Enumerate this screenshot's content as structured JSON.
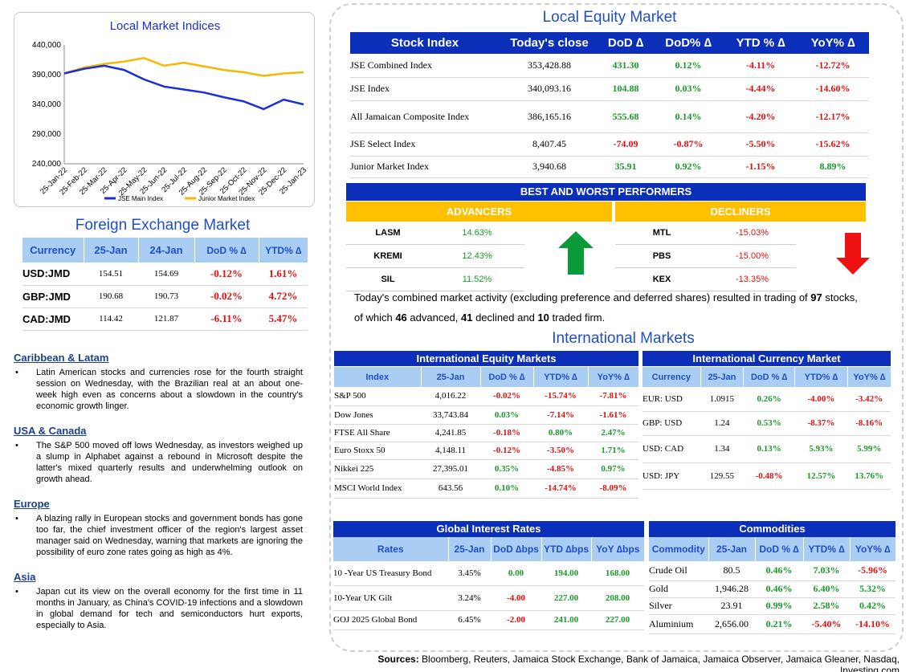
{
  "chart": {
    "title": "Local Market Indices",
    "y_ticks": [
      "440,000",
      "390,000",
      "340,000",
      "290,000",
      "240,000"
    ],
    "x_ticks": [
      "25-Jan-22",
      "25-Feb-22",
      "25-Mar-22",
      "25-Apr-22",
      "25-May-22",
      "25-Jun-22",
      "25-Jul-22",
      "25-Aug-22",
      "25-Sep-22",
      "25-Oct-22",
      "25-Nov-22",
      "25-Dec-22",
      "25-Jan-23"
    ],
    "legend": [
      "JSE Main Index",
      "Junior Market Index"
    ],
    "colors": {
      "main": "#1a2fd6",
      "junior": "#f5b800"
    }
  },
  "chart_data": {
    "type": "line",
    "title": "Local Market Indices",
    "x": [
      "25-Jan-22",
      "25-Feb-22",
      "25-Mar-22",
      "25-Apr-22",
      "25-May-22",
      "25-Jun-22",
      "25-Jul-22",
      "25-Aug-22",
      "25-Sep-22",
      "25-Oct-22",
      "25-Nov-22",
      "25-Dec-22",
      "25-Jan-23"
    ],
    "ylim": [
      240000,
      440000
    ],
    "series": [
      {
        "name": "JSE Main Index",
        "values": [
          392000,
          400000,
          405000,
          398000,
          382000,
          370000,
          365000,
          360000,
          352000,
          345000,
          332000,
          348000,
          340000
        ]
      },
      {
        "name": "Junior Market Index",
        "values": [
          392000,
          402000,
          408000,
          412000,
          418000,
          405000,
          410000,
          404000,
          398000,
          394000,
          388000,
          392000,
          394000
        ]
      }
    ],
    "grid": false,
    "legend_position": "bottom"
  },
  "fx": {
    "title": "Foreign Exchange Market",
    "headers": [
      "Currency",
      "25-Jan",
      "24-Jan",
      "DoD % ∆",
      "YTD% ∆"
    ],
    "rows": [
      {
        "cur": "USD:JMD",
        "d1": "154.51",
        "d2": "154.69",
        "dod": "-0.12%",
        "ytd": "1.61%"
      },
      {
        "cur": "GBP:JMD",
        "d1": "190.68",
        "d2": "190.73",
        "dod": "-0.02%",
        "ytd": "4.72%"
      },
      {
        "cur": "CAD:JMD",
        "d1": "114.42",
        "d2": "121.87",
        "dod": "-6.11%",
        "ytd": "5.47%"
      }
    ]
  },
  "news": [
    {
      "region": "Caribbean & Latam",
      "text": "Latin American stocks and currencies rose for the fourth straight session on Wednesday, with the Brazilian real at an about one-week high even as concerns about a slowdown in the country's economic growth linger."
    },
    {
      "region": "USA & Canada",
      "text": "The S&P 500 moved off lows Wednesday, as investors weighed up a slump in Alphabet against a rebound in Microsoft despite the latter's mixed quarterly results and underwhelming outlook on growth ahead."
    },
    {
      "region": "Europe",
      "text": "A blazing rally in European stocks and government bonds has gone too far, the chief investment officer of the region's largest asset manager said on Wednesday, warning that markets are ignoring the possibility of euro zone rates going as high as 4%."
    },
    {
      "region": "Asia",
      "text": "Japan cut its view on the overall economy for the first time in 11 months in January, as China's COVID-19 infections and a slowdown in global demand for tech and semiconductors hurt exports, especially to Asia."
    }
  ],
  "local_equity": {
    "title": "Local Equity Market",
    "headers": [
      "Stock Index",
      "Today's close",
      "DoD  ∆",
      "DoD% ∆",
      "YTD % ∆",
      "YoY% ∆"
    ],
    "rows": [
      {
        "name": "JSE Combined Index",
        "close": "353,428.88",
        "dod": "431.30",
        "dodp": "0.12%",
        "ytd": "-4.11%",
        "yoy": "-12.72%"
      },
      {
        "name": "JSE Index",
        "close": "340,093.16",
        "dod": "104.88",
        "dodp": "0.03%",
        "ytd": "-4.44%",
        "yoy": "-14.60%"
      },
      {
        "name": "All Jamaican Composite Index",
        "close": "386,165.16",
        "dod": "555.68",
        "dodp": "0.14%",
        "ytd": "-4.20%",
        "yoy": "-12.17%"
      },
      {
        "name": "JSE Select Index",
        "close": "8,407.45",
        "dod": "-74.09",
        "dodp": "-0.87%",
        "ytd": "-5.50%",
        "yoy": "-15.62%"
      },
      {
        "name": "Junior Market Index",
        "close": "3,940.68",
        "dod": "35.91",
        "dodp": "0.92%",
        "ytd": "-1.15%",
        "yoy": "8.89%"
      }
    ]
  },
  "performers": {
    "title": "BEST AND WORST PERFORMERS",
    "adv_label": "ADVANCERS",
    "dec_label": "DECLINERS",
    "advancers": [
      {
        "sym": "LASM",
        "val": "14.63%"
      },
      {
        "sym": "KREMI",
        "val": "12.43%"
      },
      {
        "sym": "SIL",
        "val": "11.52%"
      }
    ],
    "decliners": [
      {
        "sym": "MTL",
        "val": "-15.03%"
      },
      {
        "sym": "PBS",
        "val": "-15.00%"
      },
      {
        "sym": "KEX",
        "val": "-13.35%"
      }
    ],
    "up_color": "#0a9a3a",
    "down_color": "#ee1111"
  },
  "summary": {
    "p1": "Today's combined market activity (excluding preference and deferred shares) resulted in trading of ",
    "n_total": "97",
    "p2": " stocks, of which ",
    "n_adv": "46",
    "p3": " advanced, ",
    "n_dec": "41",
    "p4": " declined and ",
    "n_firm": "10",
    "p5": " traded firm."
  },
  "intl": {
    "title": "International Markets",
    "equity": {
      "title": "International Equity Markets",
      "headers": [
        "Index",
        "25-Jan",
        "DoD % ∆",
        "YTD% ∆",
        "YoY% ∆"
      ],
      "rows": [
        {
          "name": "S&P 500",
          "v": "4,016.22",
          "dod": "-0.02%",
          "ytd": "-15.74%",
          "yoy": "-7.81%"
        },
        {
          "name": "Dow Jones",
          "v": "33,743.84",
          "dod": "0.03%",
          "ytd": "-7.14%",
          "yoy": "-1.61%"
        },
        {
          "name": "FTSE All Share",
          "v": "4,241.85",
          "dod": "-0.18%",
          "ytd": "0.80%",
          "yoy": "2.47%"
        },
        {
          "name": "Euro Stoxx 50",
          "v": "4,148.11",
          "dod": "-0.12%",
          "ytd": "-3.50%",
          "yoy": "1.71%"
        },
        {
          "name": "Nikkei 225",
          "v": "27,395.01",
          "dod": "0.35%",
          "ytd": "-4.85%",
          "yoy": "0.97%"
        },
        {
          "name": "MSCI World Index",
          "v": "643.56",
          "dod": "0.10%",
          "ytd": "-14.74%",
          "yoy": "-8.09%"
        }
      ]
    },
    "currency": {
      "title": "International Currency Market",
      "headers": [
        "Currency",
        "25-Jan",
        "DoD % ∆",
        "YTD% ∆",
        "YoY% ∆"
      ],
      "rows": [
        {
          "name": "EUR: USD",
          "v": "1.0915",
          "dod": "0.26%",
          "ytd": "-4.00%",
          "yoy": "-3.42%"
        },
        {
          "name": "GBP: USD",
          "v": "1.24",
          "dod": "0.53%",
          "ytd": "-8.37%",
          "yoy": "-8.16%"
        },
        {
          "name": "USD: CAD",
          "v": "1.34",
          "dod": "0.13%",
          "ytd": "5.93%",
          "yoy": "5.99%"
        },
        {
          "name": "USD: JPY",
          "v": "129.55",
          "dod": "-0.48%",
          "ytd": "12.57%",
          "yoy": "13.76%"
        }
      ]
    }
  },
  "rates": {
    "title": "Global Interest Rates",
    "headers": [
      "Rates",
      "25-Jan",
      "DoD ∆bps",
      "YTD ∆bps",
      "YoY ∆bps"
    ],
    "rows": [
      {
        "name": "10 -Year US Treasury Bond",
        "v": "3.45%",
        "dod": "0.00",
        "ytd": "194.00",
        "yoy": "168.00"
      },
      {
        "name": "10-Year UK Gilt",
        "v": "3.24%",
        "dod": "-4.00",
        "ytd": "227.00",
        "yoy": "208.00"
      },
      {
        "name": "GOJ 2025 Global Bond",
        "v": "6.45%",
        "dod": "-2.00",
        "ytd": "241.00",
        "yoy": "227.00"
      }
    ]
  },
  "commodities": {
    "title": "Commodities",
    "headers": [
      "Commodity",
      "25-Jan",
      "DoD % ∆",
      "YTD% ∆",
      "YoY% ∆"
    ],
    "rows": [
      {
        "name": "Crude Oil",
        "v": "80.5",
        "dod": "0.46%",
        "ytd": "7.03%",
        "yoy": "-5.96%"
      },
      {
        "name": "Gold",
        "v": "1,946.28",
        "dod": "0.46%",
        "ytd": "6.40%",
        "yoy": "5.32%"
      },
      {
        "name": "Silver",
        "v": "23.91",
        "dod": "0.99%",
        "ytd": "2.58%",
        "yoy": "0.42%"
      },
      {
        "name": "Aluminium",
        "v": "2,656.00",
        "dod": "0.21%",
        "ytd": "-5.40%",
        "yoy": "-14.10%"
      }
    ]
  },
  "sources": {
    "label": "Sources:",
    "text": " Bloomberg, Reuters, Jamaica Stock Exchange, Bank of Jamaica, Jamaica Observer, Jamaica Gleaner, Nasdaq, Investing.com"
  }
}
